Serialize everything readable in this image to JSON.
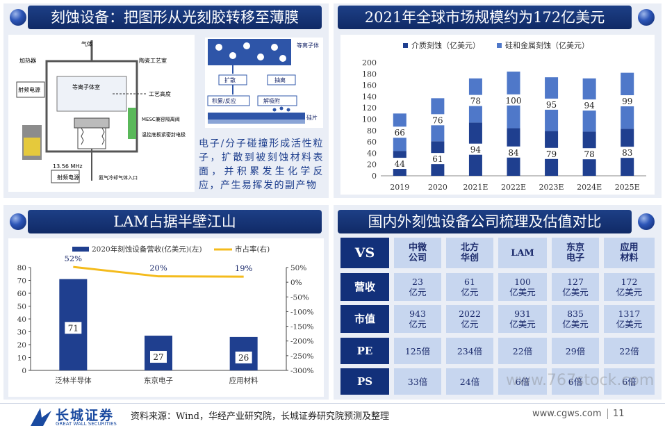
{
  "panel1": {
    "title": "刻蚀设备：把图形从光刻胶转移至薄膜",
    "diagram_labels": {
      "gas_in": "气体",
      "heater": "加热器",
      "rf_power_top": "射频电源",
      "plasma": "等离子体室",
      "ceramic": "陶瓷工艺室",
      "process_height": "工艺高度",
      "mesc": "MESC兼容隔离阀",
      "wafer_clamp": "温控底板紧密封电极",
      "freq": "13.56 MHz",
      "rf_power_bottom": "射频电源",
      "cooling_gas": "氦气冷却气体入口"
    },
    "mini_labels": {
      "plasma": "等离子体",
      "diffuse": "扩散",
      "pump": "抽离",
      "adsorb": "积累/反应",
      "desorb": "解吸附",
      "wafer": "硅片"
    },
    "description": "电子/分子碰撞形成活性粒子，扩散到被刻蚀材料表面，并积累发生化学反应，产生易挥发的副产物"
  },
  "panel2": {
    "title": "2021年全球市场规模约为172亿美元"
  },
  "panel3": {
    "title": "LAM占据半壁江山"
  },
  "panel4": {
    "title": "国内外刻蚀设备公司梳理及估值对比",
    "headers": [
      "VS",
      "中微\n公司",
      "北方\n华创",
      "LAM",
      "东京\n电子",
      "应用\n材料"
    ],
    "rows": [
      {
        "label": "营收",
        "cells": [
          "23\n亿元",
          "61\n亿元",
          "100\n亿美元",
          "127\n亿美元",
          "172\n亿美元"
        ]
      },
      {
        "label": "市值",
        "cells": [
          "943\n亿元",
          "2022\n亿元",
          "931\n亿美元",
          "835\n亿美元",
          "1317\n亿美元"
        ]
      },
      {
        "label": "PE",
        "cells": [
          "125倍",
          "234倍",
          "22倍",
          "29倍",
          "22倍"
        ]
      },
      {
        "label": "PS",
        "cells": [
          "33倍",
          "24倍",
          "6倍",
          "6倍",
          "6倍"
        ]
      }
    ]
  },
  "footer": {
    "logo_cn": "长城证券",
    "logo_en": "GREAT WALL SECURITIES",
    "source": "资料来源：Wind，华经产业研究院，长城证券研究院预测及整理",
    "website": "www.cgws.com",
    "page": "11",
    "watermark": "www.767stock.com"
  },
  "colors": {
    "dark_blue": "#1f3f8f",
    "light_blue": "#4f78c9",
    "gold": "#f4bb1c",
    "header_bg": "#12307a",
    "cell_bg": "#c7d6ef"
  },
  "chart_data": [
    {
      "type": "bar",
      "stacked": true,
      "categories": [
        "2019",
        "2020",
        "2021E",
        "2022E",
        "2023E",
        "2024E",
        "2025E"
      ],
      "series": [
        {
          "name": "介质刻蚀（亿美元）",
          "values": [
            44,
            61,
            94,
            84,
            79,
            78,
            83
          ]
        },
        {
          "name": "硅和金属刻蚀（亿美元）",
          "values": [
            66,
            76,
            78,
            100,
            95,
            94,
            99
          ]
        }
      ],
      "ylim": [
        0,
        200
      ],
      "yticks": [
        0,
        20,
        40,
        60,
        80,
        100,
        120,
        140,
        160,
        180,
        200
      ],
      "legend": "top",
      "grid": false
    },
    {
      "type": "bar",
      "categories": [
        "泛林半导体",
        "东京电子",
        "应用材料"
      ],
      "series": [
        {
          "name": "2020年刻蚀设备营收(亿美元)(左)",
          "values": [
            71,
            27,
            26
          ]
        },
        {
          "name": "市占率(右)",
          "type": "line",
          "values": [
            52,
            20,
            19
          ],
          "labels": [
            "52%",
            "20%",
            "19%"
          ]
        }
      ],
      "ylim": [
        0,
        80
      ],
      "yticks": [
        0,
        10,
        20,
        30,
        40,
        50,
        60,
        70,
        80
      ],
      "y2lim": [
        -300,
        50
      ],
      "y2ticks": [
        "-300%",
        "-250%",
        "-200%",
        "-150%",
        "-100%",
        "-50%",
        "0%",
        "50%"
      ],
      "legend": "top",
      "grid": false
    }
  ]
}
